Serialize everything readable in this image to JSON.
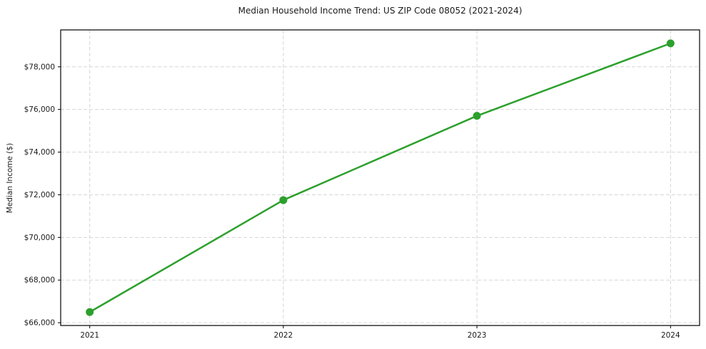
{
  "figure": {
    "background_color": "#ffffff"
  },
  "chart_data": {
    "type": "line",
    "title": "Median Household Income Trend: US ZIP Code 08052 (2021-2024)",
    "xlabel": "",
    "ylabel": "Median Income ($)",
    "x": [
      2021,
      2022,
      2023,
      2024
    ],
    "series": [
      {
        "name": "Median household income",
        "values": [
          66500,
          71750,
          75700,
          79100
        ]
      }
    ],
    "xticks": {
      "values": [
        2021,
        2022,
        2023,
        2024
      ],
      "labels": [
        "2021",
        "2022",
        "2023",
        "2024"
      ]
    },
    "yticks": {
      "values": [
        66000,
        68000,
        70000,
        72000,
        74000,
        76000,
        78000
      ],
      "labels": [
        "$66,000",
        "$68,000",
        "$70,000",
        "$72,000",
        "$74,000",
        "$76,000",
        "$78,000"
      ]
    },
    "xlim": [
      2020.85,
      2024.15
    ],
    "ylim": [
      65870,
      79730
    ],
    "grid": true,
    "legend": "none",
    "line_color": "#2ca02c",
    "marker_color": "#2ca02c",
    "grid_color": "#d5d5d5",
    "spine_color": "#000000"
  }
}
